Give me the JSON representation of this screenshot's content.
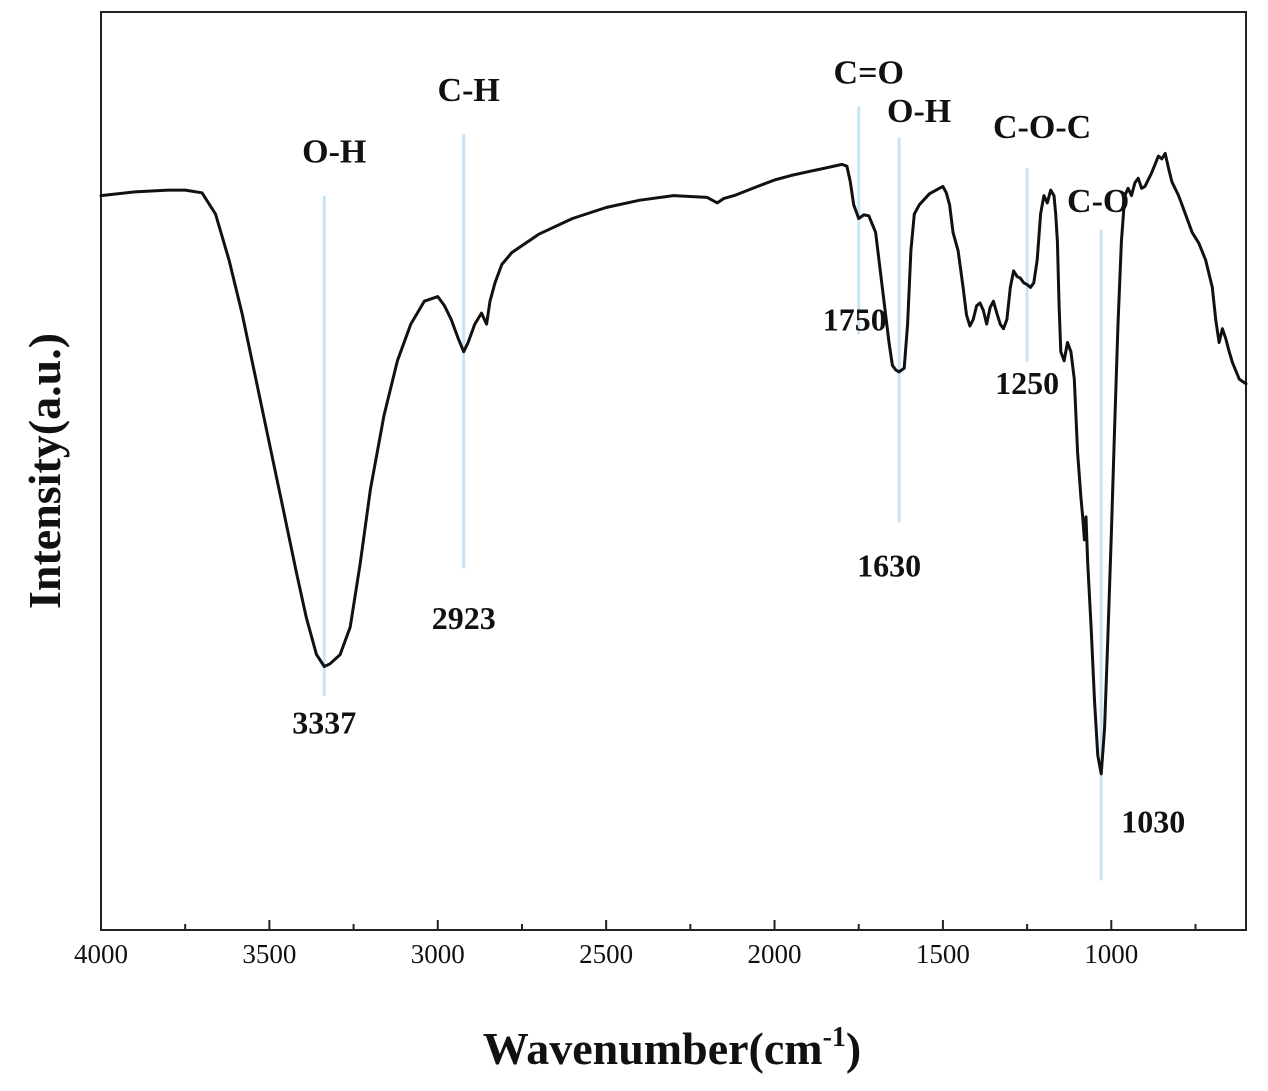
{
  "chart_data": {
    "type": "line",
    "xlabel": "Wavenumber(cm",
    "xlabel_sup": "-1",
    "xlabel_close": ")",
    "ylabel": "Intensity(a.u.)",
    "xlim": [
      4000,
      600
    ],
    "ylim": [
      0,
      1
    ],
    "x_ticks": [
      "4000",
      "3500",
      "3000",
      "2500",
      "2000",
      "1500",
      "1000"
    ],
    "x_tick_values": [
      4000,
      3500,
      3000,
      2500,
      2000,
      1500,
      1000
    ],
    "x_minor_tick_values": [
      3750,
      3250,
      2750,
      2250,
      1750,
      1250,
      750
    ],
    "grid": false,
    "legend": "none",
    "line_color": "#111111",
    "marker_color": "#c9e3f6",
    "series": [
      {
        "x": [
          4000,
          3900,
          3800,
          3750,
          3700,
          3660,
          3620,
          3580,
          3540,
          3500,
          3460,
          3420,
          3390,
          3360,
          3337,
          3320,
          3290,
          3260,
          3230,
          3200,
          3160,
          3120,
          3080,
          3040,
          3000,
          2980,
          2960,
          2940,
          2923,
          2910,
          2890,
          2870,
          2855,
          2845,
          2830,
          2810,
          2780,
          2700,
          2600,
          2500,
          2400,
          2300,
          2200,
          2170,
          2150,
          2120,
          2050,
          2000,
          1950,
          1900,
          1850,
          1800,
          1785,
          1775,
          1765,
          1750,
          1735,
          1720,
          1700,
          1680,
          1660,
          1650,
          1640,
          1630,
          1615,
          1605,
          1595,
          1585,
          1570,
          1540,
          1520,
          1500,
          1490,
          1480,
          1470,
          1455,
          1440,
          1430,
          1420,
          1410,
          1400,
          1390,
          1380,
          1370,
          1360,
          1350,
          1340,
          1330,
          1320,
          1310,
          1300,
          1290,
          1280,
          1270,
          1260,
          1250,
          1240,
          1230,
          1220,
          1210,
          1200,
          1190,
          1180,
          1170,
          1165,
          1160,
          1155,
          1150,
          1140,
          1130,
          1120,
          1110,
          1100,
          1090,
          1085,
          1080,
          1075,
          1070,
          1060,
          1050,
          1040,
          1030,
          1020,
          1010,
          1000,
          990,
          980,
          970,
          960,
          950,
          940,
          930,
          920,
          910,
          900,
          880,
          860,
          850,
          840,
          830,
          820,
          800,
          780,
          760,
          740,
          720,
          700,
          690,
          680,
          670,
          660,
          650,
          640,
          620,
          600
        ],
        "y": [
          0.8,
          0.804,
          0.806,
          0.806,
          0.803,
          0.78,
          0.73,
          0.67,
          0.6,
          0.53,
          0.46,
          0.39,
          0.34,
          0.3,
          0.287,
          0.29,
          0.3,
          0.33,
          0.4,
          0.48,
          0.56,
          0.62,
          0.66,
          0.685,
          0.69,
          0.68,
          0.665,
          0.645,
          0.63,
          0.64,
          0.66,
          0.672,
          0.66,
          0.685,
          0.705,
          0.725,
          0.738,
          0.758,
          0.775,
          0.787,
          0.795,
          0.8,
          0.798,
          0.792,
          0.797,
          0.8,
          0.81,
          0.817,
          0.822,
          0.826,
          0.83,
          0.834,
          0.832,
          0.815,
          0.79,
          0.775,
          0.779,
          0.778,
          0.76,
          0.7,
          0.64,
          0.615,
          0.61,
          0.608,
          0.612,
          0.66,
          0.74,
          0.78,
          0.79,
          0.802,
          0.806,
          0.81,
          0.803,
          0.79,
          0.76,
          0.74,
          0.7,
          0.67,
          0.658,
          0.665,
          0.68,
          0.683,
          0.675,
          0.66,
          0.678,
          0.685,
          0.672,
          0.66,
          0.655,
          0.665,
          0.7,
          0.718,
          0.712,
          0.71,
          0.705,
          0.703,
          0.7,
          0.705,
          0.73,
          0.78,
          0.8,
          0.792,
          0.806,
          0.8,
          0.78,
          0.75,
          0.68,
          0.63,
          0.62,
          0.64,
          0.63,
          0.6,
          0.52,
          0.47,
          0.45,
          0.425,
          0.45,
          0.4,
          0.33,
          0.25,
          0.19,
          0.17,
          0.22,
          0.32,
          0.43,
          0.55,
          0.66,
          0.75,
          0.8,
          0.808,
          0.8,
          0.814,
          0.819,
          0.808,
          0.81,
          0.825,
          0.843,
          0.84,
          0.846,
          0.83,
          0.815,
          0.8,
          0.78,
          0.76,
          0.748,
          0.73,
          0.7,
          0.665,
          0.64,
          0.655,
          0.644,
          0.63,
          0.618,
          0.6,
          0.595
        ]
      }
    ],
    "peaks": [
      {
        "x": 3337,
        "value": "3337",
        "group": "O-H",
        "y_top": 0.8,
        "y_bottom": 0.255,
        "y_group_label": 0.836,
        "y_value_label": 0.214,
        "value_label_dx": 0,
        "group_label_dx": 10
      },
      {
        "x": 2923,
        "value": "2923",
        "group": "C-H",
        "y_top": 0.867,
        "y_bottom": 0.394,
        "y_group_label": 0.903,
        "y_value_label": 0.328,
        "value_label_dx": 0,
        "group_label_dx": 5
      },
      {
        "x": 1750,
        "value": "1750",
        "group": "C=O",
        "y_top": 0.897,
        "y_bottom": 0.649,
        "y_group_label": 0.922,
        "y_value_label": 0.653,
        "value_label_dx": -4,
        "group_label_dx": 10
      },
      {
        "x": 1630,
        "value": "1630",
        "group": "O-H",
        "y_top": 0.863,
        "y_bottom": 0.444,
        "y_group_label": 0.88,
        "y_value_label": 0.385,
        "value_label_dx": -10,
        "group_label_dx": 20
      },
      {
        "x": 1250,
        "value": "1250",
        "group": "C-O-C",
        "y_top": 0.83,
        "y_bottom": 0.619,
        "y_group_label": 0.863,
        "y_value_label": 0.584,
        "value_label_dx": 0,
        "group_label_dx": 15
      },
      {
        "x": 1030,
        "value": "1030",
        "group": "C-O",
        "y_top": 0.763,
        "y_bottom": 0.054,
        "y_group_label": 0.782,
        "y_value_label": 0.106,
        "value_label_dx": 52,
        "group_label_dx": -3
      }
    ]
  }
}
